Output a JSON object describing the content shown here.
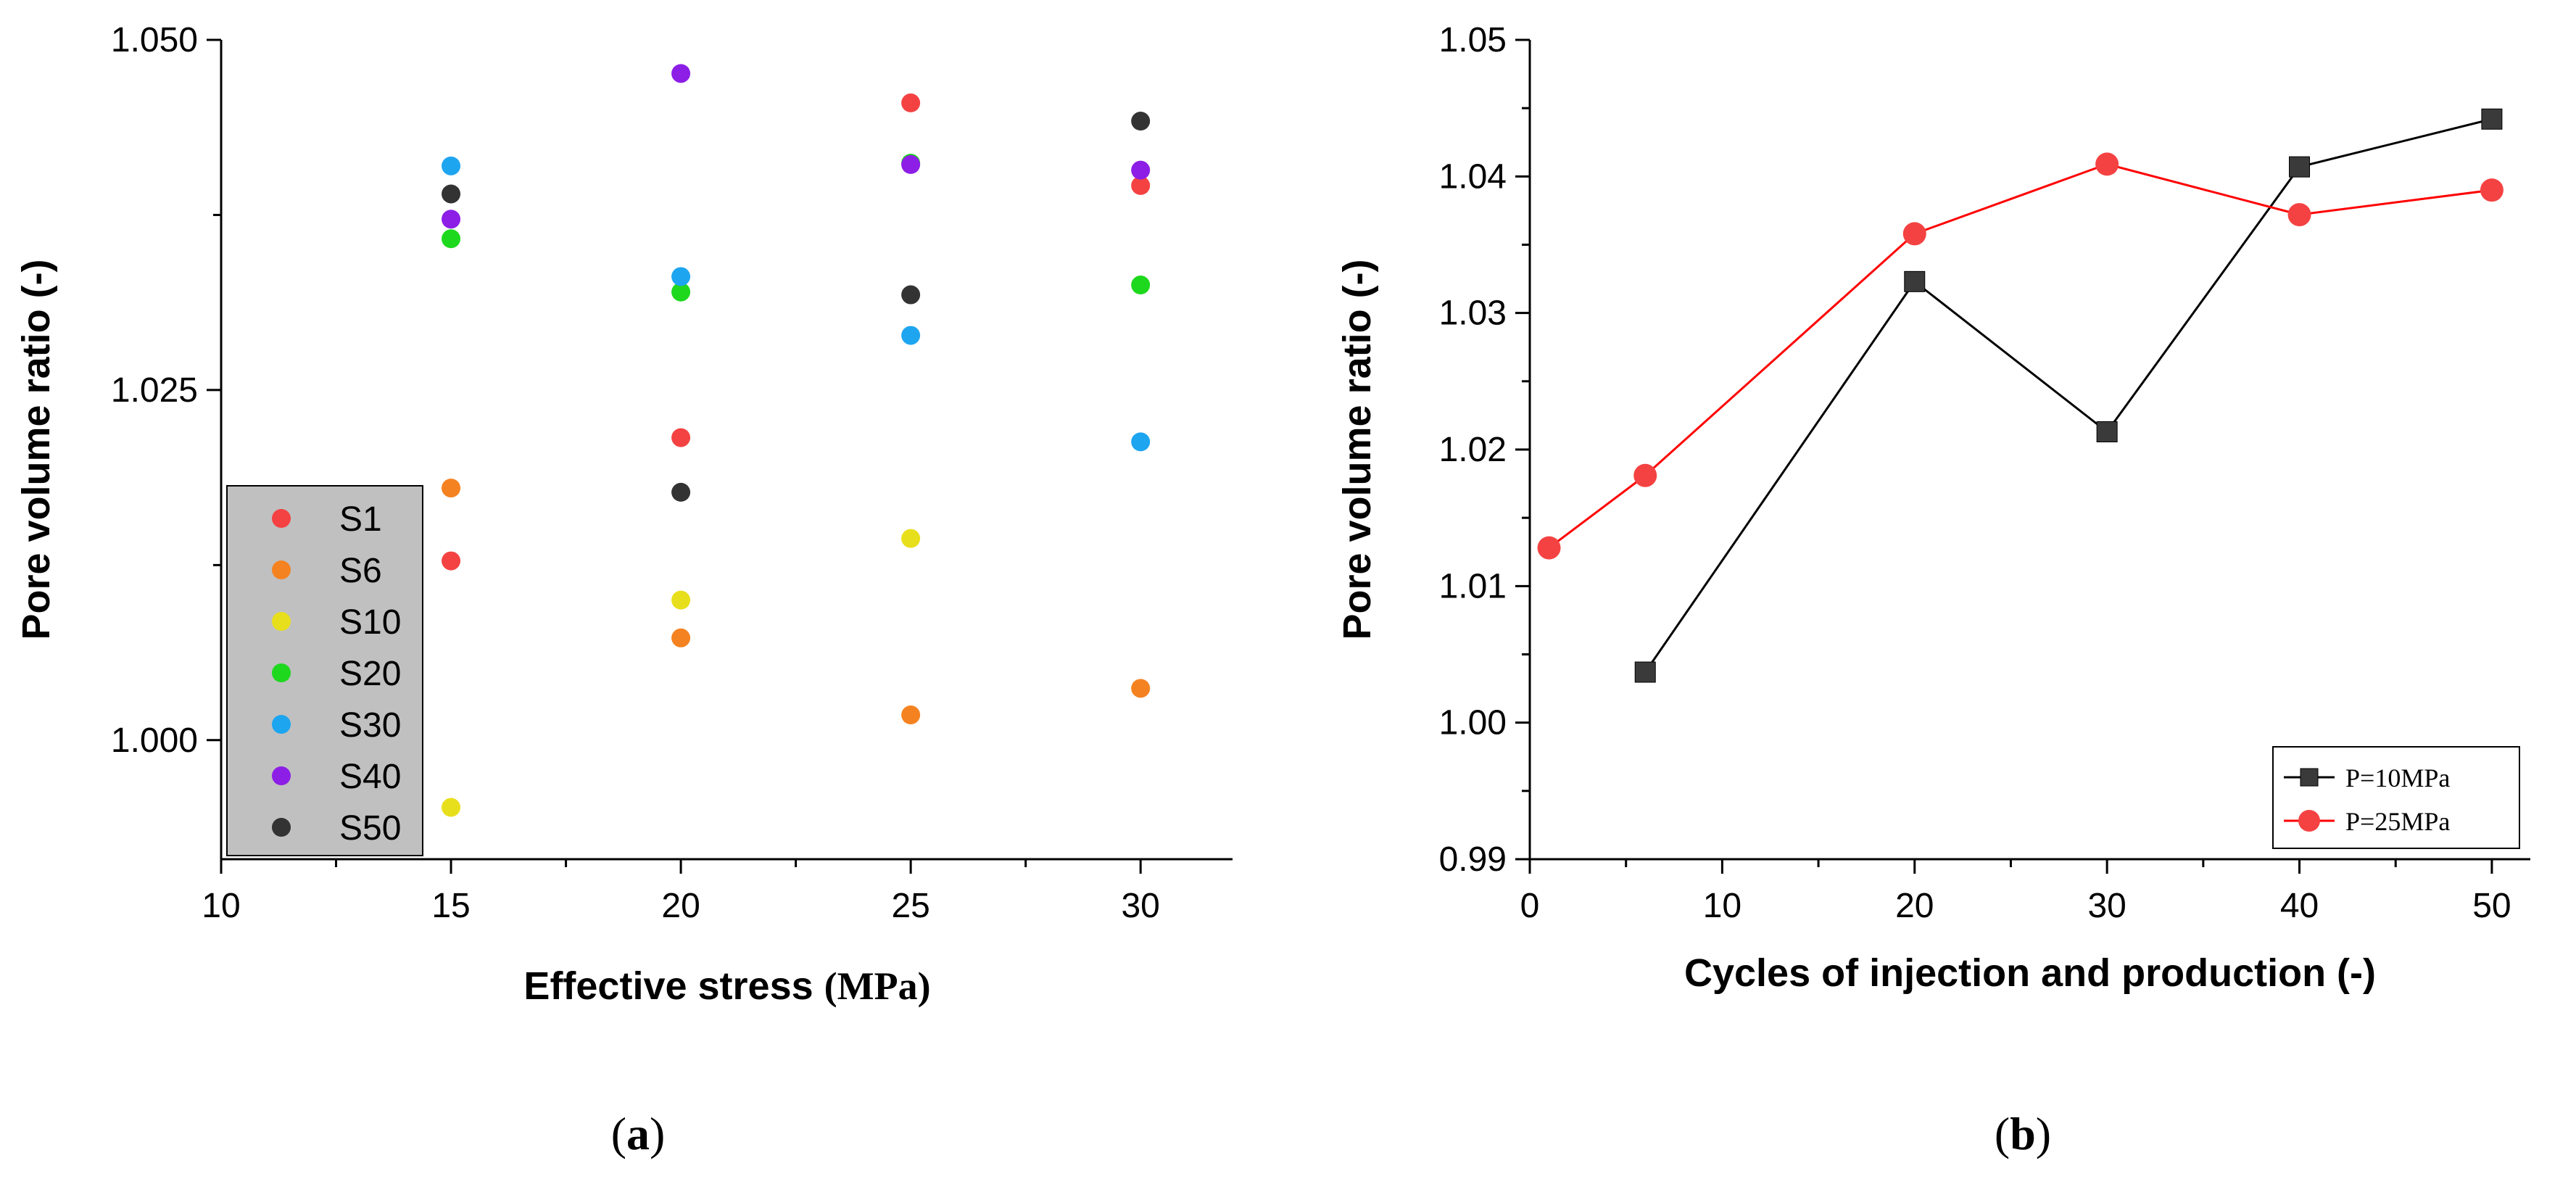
{
  "chart_data": [
    {
      "type": "scatter",
      "panel_label": "(a)",
      "panel_label_parts": {
        "open": "(",
        "letter": "a",
        "close": ")"
      },
      "xlabel": "Effective stress (MPa)",
      "xlabel_parts": {
        "main": "Effective stress ",
        "unit": "(MPa)"
      },
      "ylabel": "Pore volume ratio (-)",
      "xlim": [
        10,
        32
      ],
      "ylim": [
        0.9915,
        1.05
      ],
      "xticks": [
        10,
        15,
        20,
        25,
        30
      ],
      "xtick_labels": [
        "10",
        "15",
        "20",
        "25",
        "30"
      ],
      "yticks": [
        1.0,
        1.025,
        1.05
      ],
      "ytick_labels": [
        "1.000",
        "1.025",
        "1.050"
      ],
      "legend_position": "bottom-left",
      "series": [
        {
          "name": "S1",
          "color": "#f44242",
          "x": [
            15,
            20,
            25,
            30
          ],
          "y": [
            1.0128,
            1.0216,
            1.0455,
            1.0396
          ]
        },
        {
          "name": "S6",
          "color": "#f58220",
          "x": [
            15,
            20,
            25,
            30
          ],
          "y": [
            1.018,
            1.0073,
            1.0018,
            1.0037
          ]
        },
        {
          "name": "S10",
          "color": "#e8df1c",
          "x": [
            15,
            20,
            25,
            30
          ],
          "y": [
            0.9952,
            1.01,
            1.0144,
            null
          ]
        },
        {
          "name": "S20",
          "color": "#1ed81e",
          "x": [
            15,
            20,
            25,
            30
          ],
          "y": [
            1.0358,
            1.032,
            1.0412,
            1.0325
          ]
        },
        {
          "name": "S30",
          "color": "#1ea5f0",
          "x": [
            15,
            20,
            25,
            30
          ],
          "y": [
            1.041,
            1.0331,
            1.0289,
            1.0213
          ]
        },
        {
          "name": "S40",
          "color": "#8c1ee6",
          "x": [
            15,
            20,
            25,
            30
          ],
          "y": [
            1.0372,
            1.0476,
            1.0411,
            1.0407
          ]
        },
        {
          "name": "S50",
          "color": "#333333",
          "x": [
            15,
            20,
            25,
            30
          ],
          "y": [
            1.039,
            1.0177,
            1.0318,
            1.0442
          ]
        }
      ]
    },
    {
      "type": "line",
      "panel_label": "(b)",
      "panel_label_parts": {
        "open": "(",
        "letter": "b",
        "close": ")"
      },
      "xlabel": "Cycles of injection and production (-)",
      "ylabel": "Pore volume ratio (-)",
      "xlim": [
        0,
        52
      ],
      "ylim": [
        0.99,
        1.05
      ],
      "xticks": [
        0,
        10,
        20,
        30,
        40,
        50
      ],
      "xtick_labels": [
        "0",
        "10",
        "20",
        "30",
        "40",
        "50"
      ],
      "yticks": [
        0.99,
        1.0,
        1.01,
        1.02,
        1.03,
        1.04,
        1.05
      ],
      "ytick_labels": [
        "0.99",
        "1.00",
        "1.01",
        "1.02",
        "1.03",
        "1.04",
        "1.05"
      ],
      "legend_position": "bottom-right",
      "series": [
        {
          "name": "P=10MPa",
          "color": "#3a3a3a",
          "line_color": "#000000",
          "marker": "square",
          "x": [
            6,
            20,
            30,
            40,
            50
          ],
          "y": [
            1.0037,
            1.0323,
            1.0213,
            1.0407,
            1.0442
          ]
        },
        {
          "name": "P=25MPa",
          "color": "#f44242",
          "line_color": "#ff0000",
          "marker": "circle",
          "x": [
            1,
            6,
            20,
            30,
            40,
            50
          ],
          "y": [
            1.0128,
            1.0181,
            1.0358,
            1.0409,
            1.0372,
            1.039
          ]
        }
      ]
    }
  ]
}
